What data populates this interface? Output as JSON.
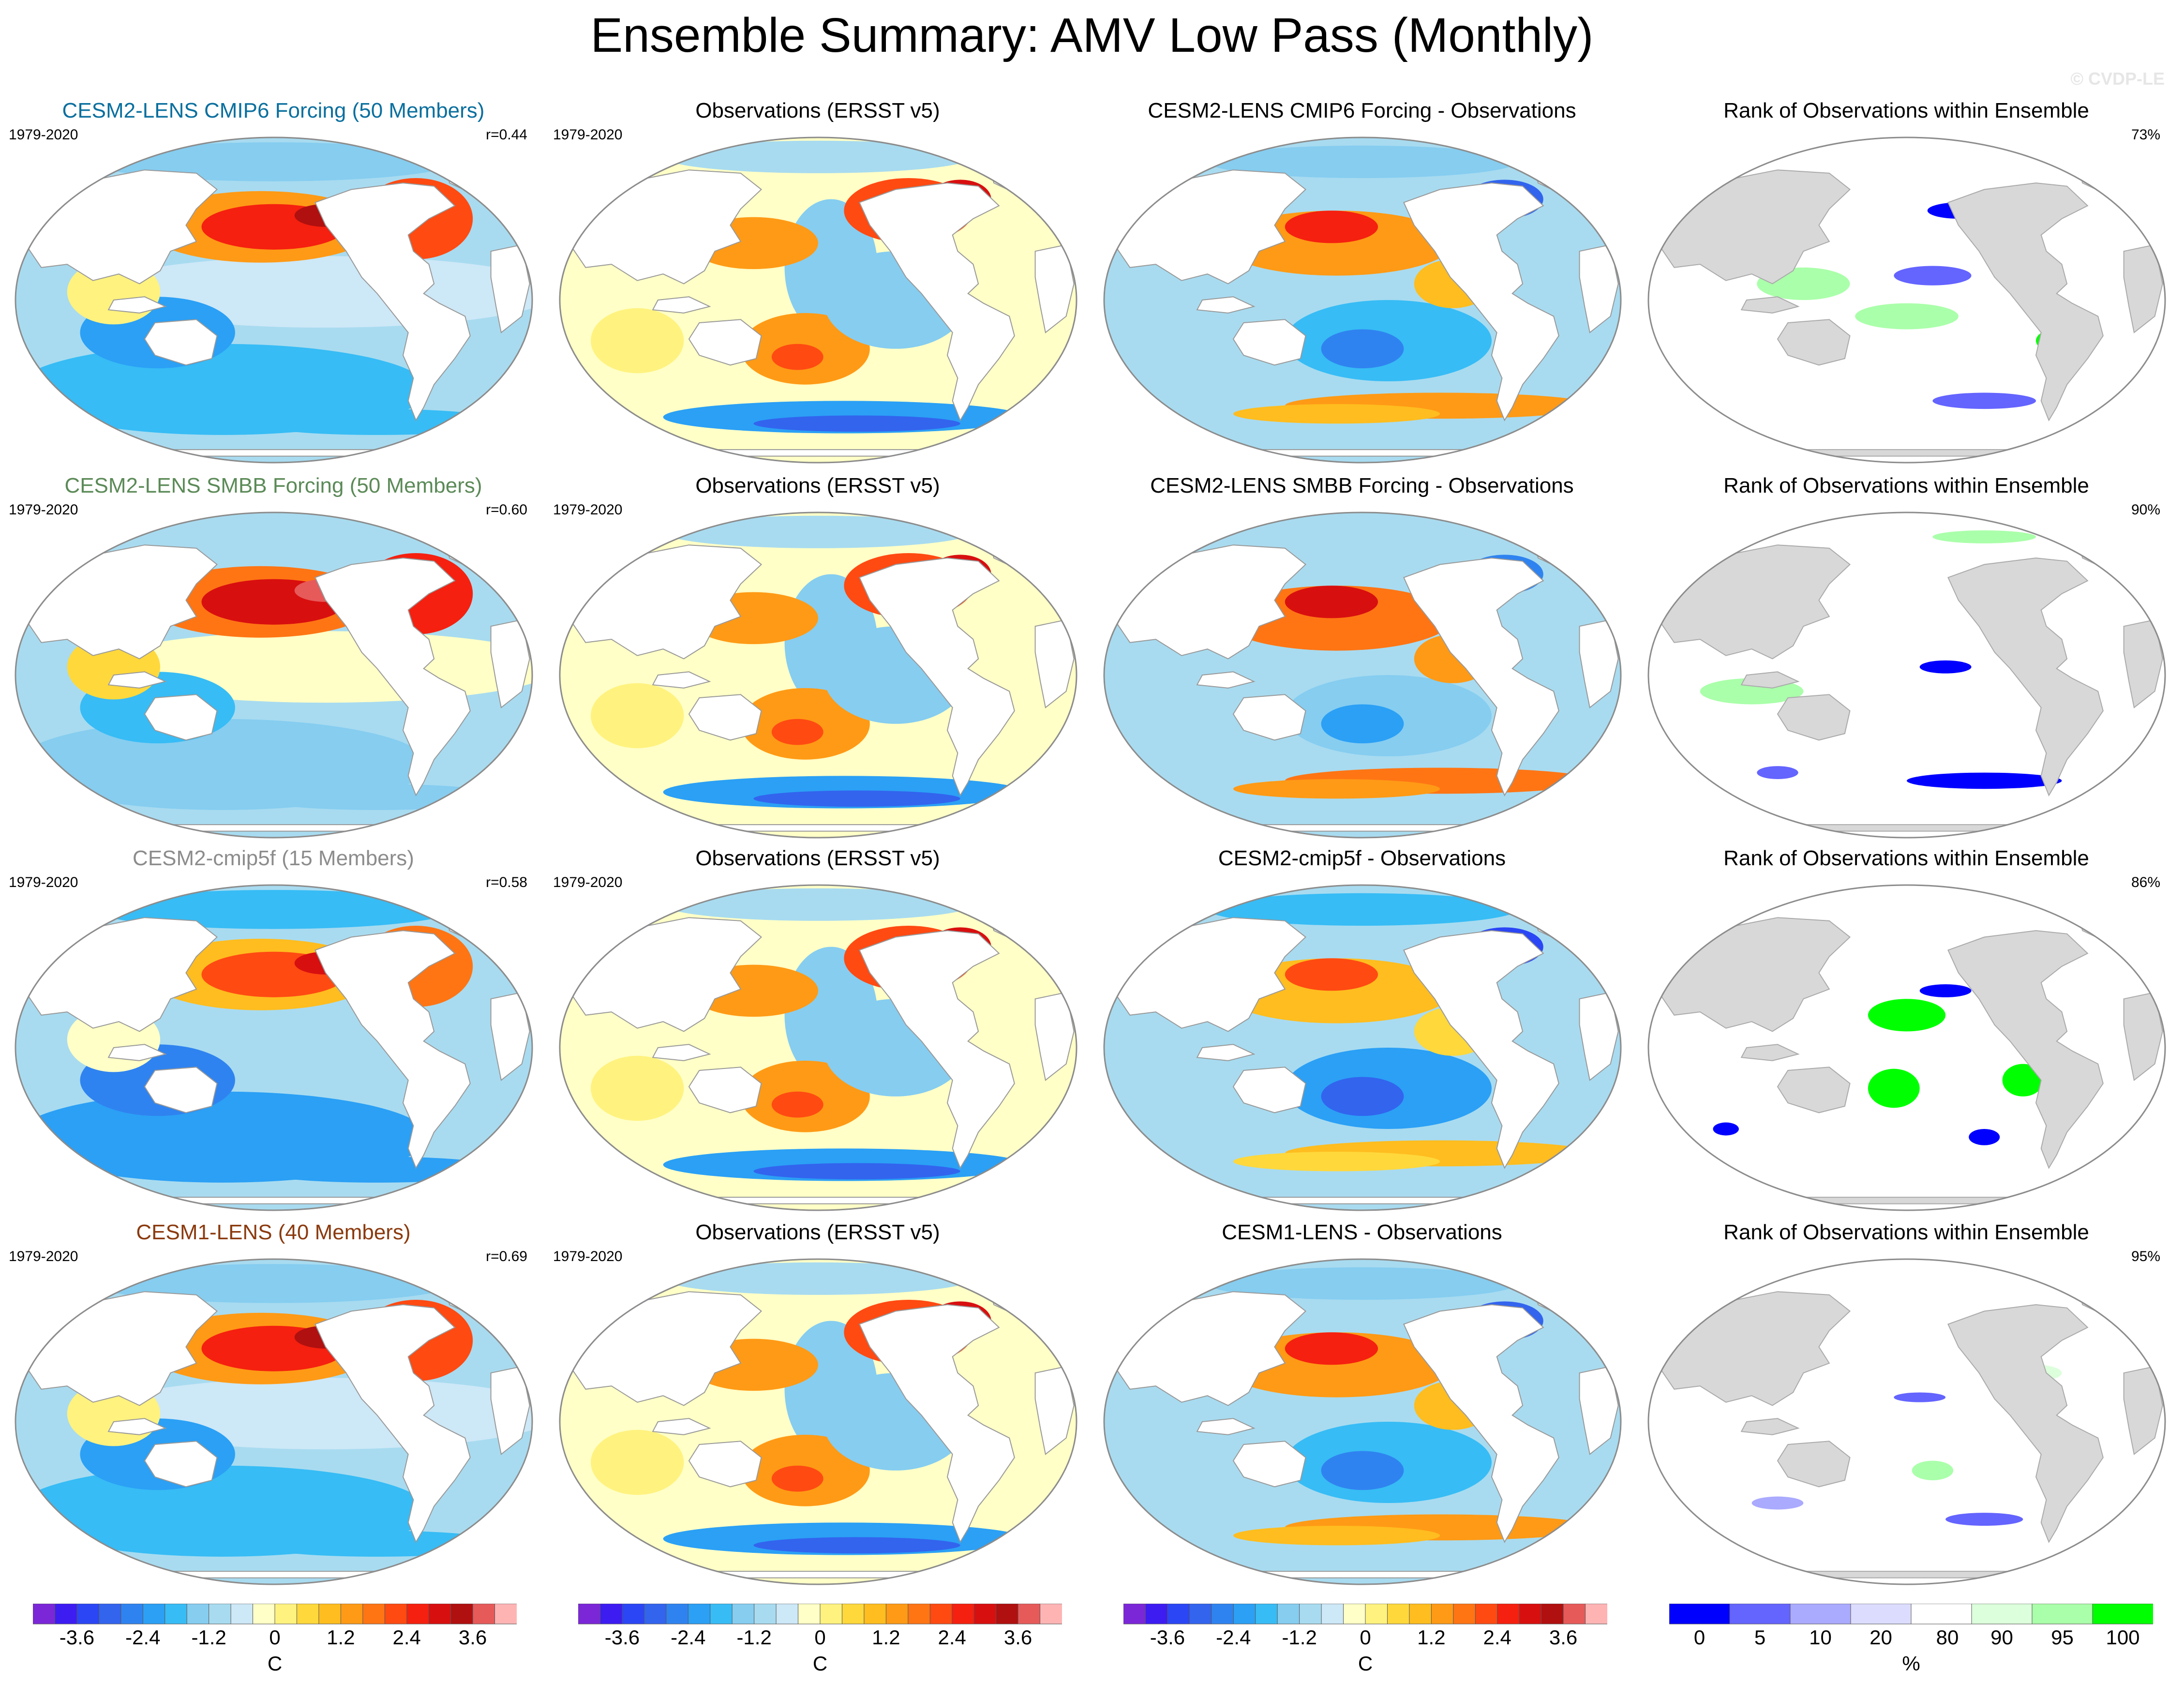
{
  "title": "Ensemble Summary: AMV Low Pass (Monthly)",
  "watermark": "© CVDP-LE",
  "rows": [
    {
      "ensemble": {
        "label": "CESM2-LENS CMIP6 Forcing (50 Members)",
        "color": "#0a6f9e",
        "period": "1979-2020",
        "r": "r=0.44"
      },
      "observations": {
        "label": "Observations (ERSST v5)",
        "period": "1979-2020"
      },
      "difference": {
        "label": "CESM2-LENS CMIP6 Forcing - Observations"
      },
      "rank": {
        "label": "Rank of Observations within Ensemble",
        "pct": "73%"
      }
    },
    {
      "ensemble": {
        "label": "CESM2-LENS SMBB Forcing (50 Members)",
        "color": "#5b8a57",
        "period": "1979-2020",
        "r": "r=0.60"
      },
      "observations": {
        "label": "Observations (ERSST v5)",
        "period": "1979-2020"
      },
      "difference": {
        "label": "CESM2-LENS SMBB Forcing - Observations"
      },
      "rank": {
        "label": "Rank of Observations within Ensemble",
        "pct": "90%"
      }
    },
    {
      "ensemble": {
        "label": "CESM2-cmip5f (15 Members)",
        "color": "#8c8c8c",
        "period": "1979-2020",
        "r": "r=0.58"
      },
      "observations": {
        "label": "Observations (ERSST v5)",
        "period": "1979-2020"
      },
      "difference": {
        "label": "CESM2-cmip5f - Observations"
      },
      "rank": {
        "label": "Rank of Observations within Ensemble",
        "pct": "86%"
      }
    },
    {
      "ensemble": {
        "label": "CESM1-LENS (40 Members)",
        "color": "#8b3a0e",
        "period": "1979-2020",
        "r": "r=0.69"
      },
      "observations": {
        "label": "Observations (ERSST v5)",
        "period": "1979-2020"
      },
      "difference": {
        "label": "CESM1-LENS - Observations"
      },
      "rank": {
        "label": "Rank of Observations within Ensemble",
        "pct": "95%"
      }
    }
  ],
  "sst_colorbar": {
    "unit": "C",
    "ticks": [
      "-3.6",
      "-2.4",
      "-1.2",
      "0",
      "1.2",
      "2.4",
      "3.6"
    ],
    "colors": [
      "#7b27d8",
      "#3d1cf2",
      "#2b46f5",
      "#3264ee",
      "#2f83f0",
      "#2ba0f5",
      "#37bcf5",
      "#86cdf0",
      "#a8dbf0",
      "#cde8f7",
      "#ffffc7",
      "#fff27f",
      "#ffd83c",
      "#ffbd1f",
      "#ff9a16",
      "#ff7514",
      "#ff4a12",
      "#f5200f",
      "#d80f0f",
      "#b0100f",
      "#e65a5a",
      "#ffb4b4"
    ]
  },
  "rank_colorbar": {
    "unit": "%",
    "ticks": [
      "0",
      "5",
      "10",
      "20",
      "80",
      "90",
      "95",
      "100"
    ],
    "tick_values": [
      0,
      5,
      10,
      20,
      80,
      90,
      95,
      100
    ],
    "colors": [
      "#0000ff",
      "#6464ff",
      "#aaaaff",
      "#dcdcff",
      "#ffffff",
      "#dcffdc",
      "#aaffaa",
      "#00ff00"
    ]
  },
  "colors": {
    "land_model": "#ffffff",
    "land_rank": "#d8d8d8",
    "coast": "#999999"
  }
}
